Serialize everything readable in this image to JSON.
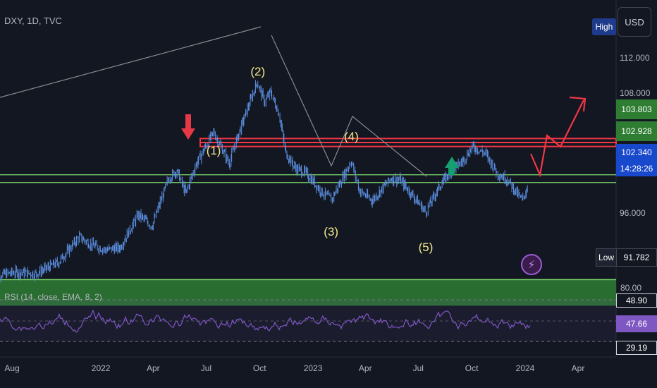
{
  "header": {
    "symbol": "DXY, 1D, TVC",
    "currency": "USD"
  },
  "price_axis": {
    "ticks": [
      {
        "label": "112.000",
        "v": 112
      },
      {
        "label": "108.000",
        "v": 108
      },
      {
        "label": "96.000",
        "v": 96
      }
    ],
    "high_label": "High",
    "low_label": "Low",
    "tags": {
      "resistance_upper": "103.803",
      "resistance_lower": "102.928",
      "last_price": "102.340",
      "countdown": "14:28:26",
      "low_value": "91.782"
    }
  },
  "time_axis": {
    "ticks": [
      {
        "label": "Aug",
        "d": "2021-08-01"
      },
      {
        "label": "2022",
        "d": "2022-01-01"
      },
      {
        "label": "Apr",
        "d": "2022-04-01"
      },
      {
        "label": "Jul",
        "d": "2022-07-01"
      },
      {
        "label": "Oct",
        "d": "2022-10-01"
      },
      {
        "label": "2023",
        "d": "2023-01-01"
      },
      {
        "label": "Apr",
        "d": "2023-04-01"
      },
      {
        "label": "Jul",
        "d": "2023-07-01"
      },
      {
        "label": "Oct",
        "d": "2023-10-01"
      },
      {
        "label": "2024",
        "d": "2024-01-01"
      },
      {
        "label": "Apr",
        "d": "2024-04-01"
      }
    ]
  },
  "waves": [
    {
      "label": "(2)",
      "d": "2022-09-28",
      "v": 115.4
    },
    {
      "label": "(1)",
      "d": "2022-07-14",
      "v": 106.5
    },
    {
      "label": "(4)",
      "d": "2023-03-08",
      "v": 108.1
    },
    {
      "label": "(3)",
      "d": "2023-02-01",
      "v": 97.3
    },
    {
      "label": "(5)",
      "d": "2023-07-14",
      "v": 95.6
    }
  ],
  "rsi": {
    "label": "RSI (14, close, EMA, 8, 2)",
    "scale_label": "80.00",
    "levels": {
      "upper": "48.90",
      "current": "47.66",
      "lower": "29.19"
    }
  },
  "colors": {
    "background": "#131722",
    "candles": "#5b8fe0",
    "resistance_zone": "#f23645",
    "support_zone": "#2e7d32",
    "support_line": "#7ddc6b",
    "projection": "#f23645",
    "rsi_line": "#7e57c2",
    "last_price_tag": "#1848cc",
    "wave_text": "#f5e98b"
  },
  "flash_icon": "lightning-icon",
  "chart_data": {
    "type": "line",
    "title": "DXY, 1D, TVC",
    "xlabel": "",
    "ylabel": "",
    "ylim": [
      90.5,
      117.5
    ],
    "series": [
      {
        "x": [
          "2021-07-01",
          "2021-08-10",
          "2021-09-10",
          "2021-10-20",
          "2021-11-25",
          "2021-12-15",
          "2022-01-10",
          "2022-02-03",
          "2022-03-07",
          "2022-03-30",
          "2022-04-28",
          "2022-05-12",
          "2022-05-27",
          "2022-06-14",
          "2022-07-14",
          "2022-08-10",
          "2022-08-29",
          "2022-09-27",
          "2022-10-10",
          "2022-10-20",
          "2022-11-04",
          "2022-11-15",
          "2022-12-01",
          "2022-12-20",
          "2023-01-17",
          "2023-02-02",
          "2023-03-08",
          "2023-03-22",
          "2023-04-13",
          "2023-05-15",
          "2023-05-31",
          "2023-06-15",
          "2023-07-14",
          "2023-08-05",
          "2023-08-25",
          "2023-09-15",
          "2023-10-03",
          "2023-10-25",
          "2023-11-15",
          "2023-12-01",
          "2023-12-27",
          "2024-01-05"
        ],
        "values": [
          92.4,
          92.8,
          92.6,
          93.9,
          96.8,
          95.9,
          95.3,
          95.6,
          99.3,
          98.0,
          103.4,
          104.3,
          101.7,
          105.0,
          108.6,
          105.1,
          109.0,
          114.3,
          112.0,
          113.2,
          110.6,
          106.3,
          104.6,
          104.0,
          101.8,
          101.0,
          105.4,
          102.0,
          100.9,
          103.4,
          103.2,
          102.0,
          99.6,
          102.3,
          104.2,
          105.3,
          107.0,
          106.2,
          103.9,
          103.3,
          100.9,
          102.34
        ]
      }
    ]
  }
}
